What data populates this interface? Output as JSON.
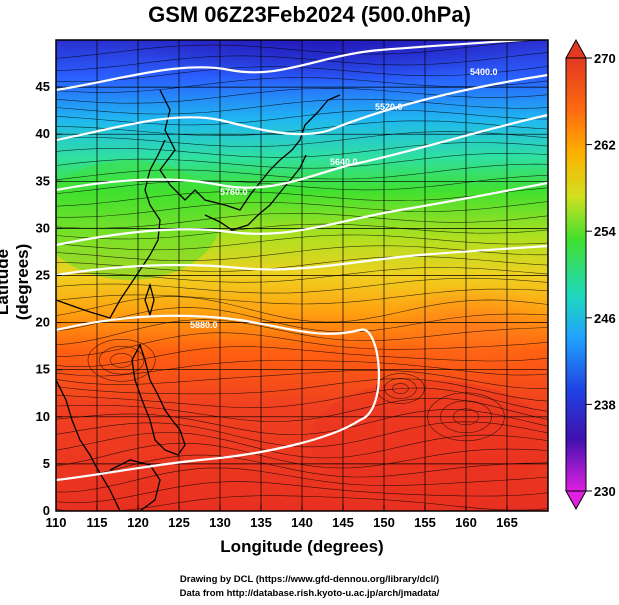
{
  "title": "GSM 06Z23Feb2024 (500.0hPa)",
  "xlabel": "Longitude (degrees)",
  "ylabel": "Latitude  (degrees)",
  "credit_line1": "Drawing by DCL (https://www.gfd-dennou.org/library/dcl/)",
  "credit_line2": "Data from http://database.rish.kyoto-u.ac.jp/arch/jmadata/",
  "chart_data": {
    "type": "heatmap",
    "x_ticks": [
      "110",
      "115",
      "120",
      "125",
      "130",
      "135",
      "140",
      "145",
      "150",
      "155",
      "160",
      "165"
    ],
    "y_ticks": [
      "0",
      "5",
      "10",
      "15",
      "20",
      "25",
      "30",
      "35",
      "40",
      "45"
    ],
    "xlim": [
      110,
      170
    ],
    "ylim": [
      0,
      50
    ],
    "colorbar": {
      "ticks": [
        "270",
        "262",
        "254",
        "246",
        "238",
        "230"
      ],
      "range": [
        230,
        270
      ],
      "colors": [
        "#e020e0",
        "#2020c0",
        "#2080ff",
        "#20d0e0",
        "#30e030",
        "#c0e020",
        "#ffb000",
        "#ff6000",
        "#e03020"
      ]
    },
    "contour_labels": [
      "5400.0",
      "5520.0",
      "5640.0",
      "5760.0",
      "5880.0"
    ],
    "grid": true,
    "colors": {
      "contour": "#ffffff",
      "coast": "#000000",
      "streamline": "#000000"
    }
  }
}
